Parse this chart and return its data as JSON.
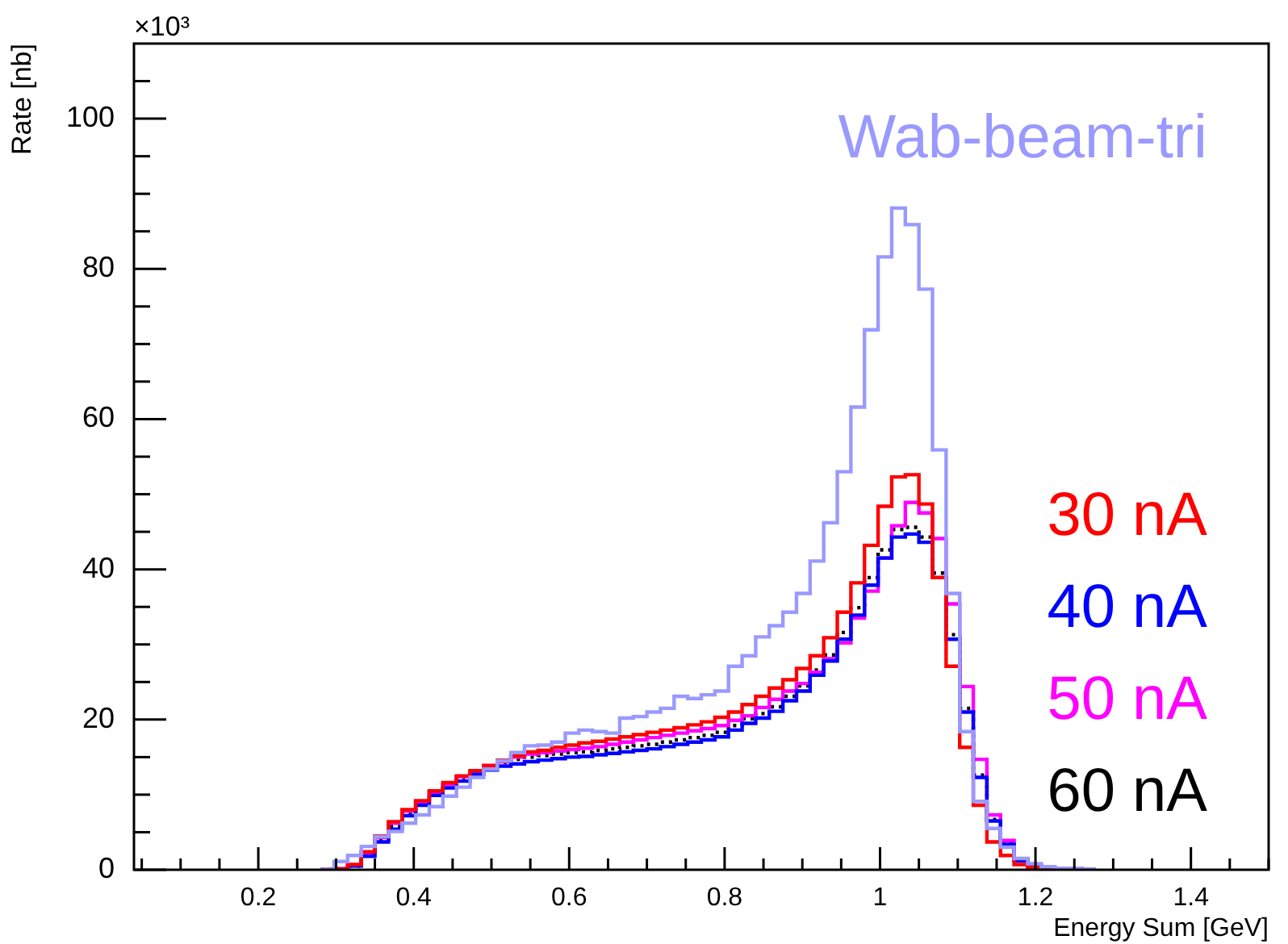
{
  "chart_data": {
    "type": "histogram",
    "xlabel": "Energy Sum [GeV]",
    "ylabel": "Rate [nb]",
    "annotations": [
      "×10³"
    ],
    "xlim": [
      0.04,
      1.5
    ],
    "xticks": [
      {
        "value": 0.05,
        "label": null
      },
      {
        "value": 0.1,
        "label": null
      },
      {
        "value": 0.15,
        "label": null
      },
      0.2,
      {
        "value": 0.25,
        "label": null
      },
      {
        "value": 0.3,
        "label": null
      },
      {
        "value": 0.35,
        "label": null
      },
      0.4,
      {
        "value": 0.45,
        "label": null
      },
      {
        "value": 0.5,
        "label": null
      },
      {
        "value": 0.55,
        "label": null
      },
      0.6,
      {
        "value": 0.65,
        "label": null
      },
      {
        "value": 0.7,
        "label": null
      },
      {
        "value": 0.75,
        "label": null
      },
      0.8,
      {
        "value": 0.85,
        "label": null
      },
      {
        "value": 0.9,
        "label": null
      },
      {
        "value": 0.95,
        "label": null
      },
      1,
      {
        "value": 1.05,
        "label": null
      },
      {
        "value": 1.1,
        "label": null
      },
      {
        "value": 1.15,
        "label": null
      },
      1.2,
      {
        "value": 1.25,
        "label": null
      },
      {
        "value": 1.3,
        "label": null
      },
      {
        "value": 1.35,
        "label": null
      },
      1.4,
      {
        "value": 1.45,
        "label": null
      },
      {
        "value": 1.5,
        "label": null
      }
    ],
    "ylim": [
      0,
      110
    ],
    "yticks": [
      0,
      {
        "value": 5,
        "label": null
      },
      {
        "value": 10,
        "label": null
      },
      {
        "value": 15,
        "label": null
      },
      20,
      {
        "value": 25,
        "label": null
      },
      {
        "value": 30,
        "label": null
      },
      {
        "value": 35,
        "label": null
      },
      40,
      {
        "value": 45,
        "label": null
      },
      {
        "value": 50,
        "label": null
      },
      {
        "value": 55,
        "label": null
      },
      60,
      {
        "value": 65,
        "label": null
      },
      {
        "value": 70,
        "label": null
      },
      {
        "value": 75,
        "label": null
      },
      80,
      {
        "value": 85,
        "label": null
      },
      {
        "value": 90,
        "label": null
      },
      {
        "value": 95,
        "label": null
      },
      100,
      {
        "value": 105,
        "label": null
      }
    ],
    "legend": "right",
    "bins": [
      0.28,
      0.2975,
      0.315,
      0.3325,
      0.35,
      0.3675,
      0.385,
      0.4025,
      0.42,
      0.4375,
      0.455,
      0.4725,
      0.49,
      0.5075,
      0.525,
      0.5425,
      0.56,
      0.5775,
      0.595,
      0.6125,
      0.63,
      0.6475,
      0.665,
      0.6825,
      0.7,
      0.7175,
      0.735,
      0.7525,
      0.77,
      0.7875,
      0.805,
      0.8225,
      0.84,
      0.8575,
      0.875,
      0.8925,
      0.91,
      0.9275,
      0.945,
      0.9625,
      0.98,
      0.9975,
      1.015,
      1.0325,
      1.05,
      1.0675,
      1.085,
      1.1025,
      1.12,
      1.1375,
      1.155,
      1.1725,
      1.19,
      1.2075,
      1.225,
      1.2425,
      1.26,
      1.2775
    ],
    "series": [
      {
        "name": "Wab-beam-tri",
        "color": "#9999ff",
        "values": [
          0,
          1.1,
          1.9,
          3.1,
          4.4,
          5.1,
          6.2,
          7.3,
          8.4,
          9.8,
          11.0,
          12.3,
          13.4,
          14.5,
          15.6,
          16.5,
          16.6,
          17.0,
          18.2,
          18.6,
          18.4,
          18.2,
          20.2,
          20.4,
          21.0,
          21.5,
          23.1,
          22.8,
          23.3,
          23.8,
          27.1,
          28.5,
          31.0,
          32.5,
          34.3,
          36.8,
          41.1,
          46.2,
          53.0,
          61.6,
          71.9,
          81.6,
          88.1,
          85.9,
          77.3,
          55.9,
          36.8,
          18.4,
          9.1,
          5.5,
          3.0,
          1.5,
          0.8,
          0.4,
          0.2,
          0.1,
          0.1
        ]
      },
      {
        "name": "30 nA",
        "color": "#ff0000",
        "values": [
          0,
          0.1,
          0.7,
          2.4,
          4.5,
          6.4,
          8.0,
          9.2,
          10.5,
          11.6,
          12.5,
          13.2,
          13.9,
          14.6,
          15.2,
          15.7,
          15.9,
          16.3,
          16.6,
          16.9,
          17.1,
          17.4,
          17.7,
          18.0,
          18.3,
          18.6,
          18.9,
          19.3,
          19.7,
          20.3,
          21.0,
          22.0,
          23.1,
          24.2,
          25.3,
          26.8,
          28.5,
          30.9,
          34.3,
          38.2,
          43.2,
          48.4,
          52.3,
          52.6,
          48.7,
          38.9,
          27.1,
          16.3,
          8.6,
          3.7,
          1.9,
          0.7,
          0.3,
          0.1,
          0.1,
          0,
          0
        ]
      },
      {
        "name": "40 nA",
        "color": "#0000ff",
        "values": [
          0,
          0.1,
          0.5,
          1.8,
          3.7,
          5.4,
          7.2,
          8.6,
          9.9,
          10.9,
          11.8,
          12.7,
          13.3,
          13.8,
          14.1,
          14.4,
          14.6,
          14.8,
          15.0,
          15.1,
          15.3,
          15.5,
          15.7,
          15.9,
          16.1,
          16.4,
          16.7,
          17.0,
          17.3,
          17.7,
          18.6,
          19.5,
          20.2,
          21.1,
          22.5,
          23.8,
          25.9,
          27.8,
          30.7,
          33.9,
          37.9,
          41.5,
          44.3,
          44.7,
          43.6,
          38.9,
          30.7,
          21.0,
          12.3,
          6.5,
          3.4,
          1.2,
          0.5,
          0.2,
          0.1,
          0.1,
          0
        ]
      },
      {
        "name": "50 nA",
        "color": "#ff00ff",
        "values": [
          0,
          0.1,
          0.6,
          2.2,
          4.3,
          6.2,
          7.8,
          9.0,
          10.3,
          11.4,
          12.4,
          13.1,
          13.8,
          14.4,
          15.0,
          15.4,
          15.6,
          15.8,
          16.0,
          16.2,
          16.4,
          16.7,
          17.0,
          17.3,
          17.6,
          17.9,
          18.2,
          18.5,
          18.8,
          19.2,
          19.9,
          20.5,
          21.6,
          22.7,
          23.8,
          24.8,
          26.3,
          28.1,
          30.2,
          33.5,
          37.1,
          41.5,
          45.8,
          48.9,
          47.5,
          44.1,
          35.4,
          24.4,
          14.7,
          7.3,
          3.9,
          1.4,
          0.6,
          0.3,
          0.1,
          0.1,
          0
        ]
      },
      {
        "name": "60 nA",
        "color": "#000000",
        "line_style": "dotted",
        "values": [
          0,
          0.1,
          0.5,
          2.0,
          4.0,
          5.8,
          7.6,
          9.1,
          10.4,
          11.4,
          12.3,
          13.2,
          13.8,
          14.3,
          14.7,
          15.0,
          15.2,
          15.4,
          15.6,
          15.7,
          15.9,
          16.1,
          16.3,
          16.5,
          16.7,
          17.0,
          17.3,
          17.6,
          17.9,
          18.3,
          19.2,
          20.1,
          20.8,
          21.7,
          23.1,
          24.5,
          26.6,
          28.6,
          31.6,
          34.9,
          38.9,
          42.6,
          45.3,
          45.6,
          44.3,
          39.5,
          31.3,
          21.5,
          12.6,
          6.7,
          3.5,
          1.3,
          0.5,
          0.2,
          0.1,
          0.1,
          0
        ]
      }
    ]
  }
}
